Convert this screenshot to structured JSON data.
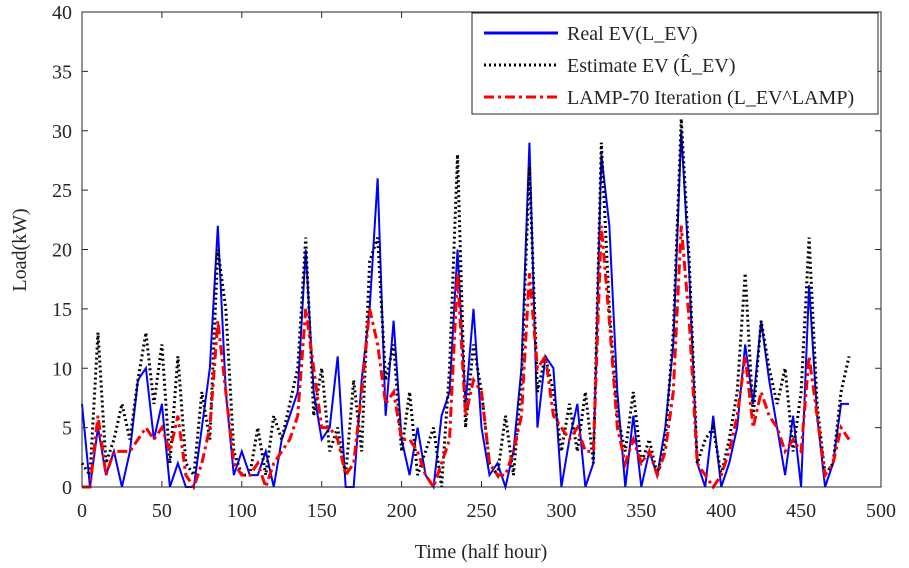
{
  "chart_data": {
    "type": "line",
    "xlabel": "Time (half hour)",
    "ylabel": "Load(kW)",
    "xlim": [
      0,
      500
    ],
    "xticks": [
      0,
      50,
      100,
      150,
      200,
      250,
      300,
      350,
      400,
      450,
      500
    ],
    "ylim": [
      0,
      40
    ],
    "yticks": [
      0,
      5,
      10,
      15,
      20,
      25,
      30,
      35,
      40
    ],
    "grid": false,
    "legend": "upper right",
    "x": [
      0,
      5,
      10,
      15,
      20,
      25,
      30,
      35,
      40,
      45,
      50,
      55,
      60,
      65,
      70,
      75,
      80,
      85,
      90,
      95,
      100,
      105,
      110,
      115,
      120,
      125,
      130,
      135,
      140,
      145,
      150,
      155,
      160,
      165,
      170,
      175,
      180,
      185,
      190,
      195,
      200,
      205,
      210,
      215,
      220,
      225,
      230,
      235,
      240,
      245,
      250,
      255,
      260,
      265,
      270,
      275,
      280,
      285,
      290,
      295,
      300,
      305,
      310,
      315,
      320,
      325,
      330,
      335,
      340,
      345,
      350,
      355,
      360,
      365,
      370,
      375,
      380,
      385,
      390,
      395,
      400,
      405,
      410,
      415,
      420,
      425,
      430,
      435,
      440,
      445,
      450,
      455,
      460,
      465,
      470,
      475,
      480
    ],
    "series": [
      {
        "name": "Real EV(L_EV)",
        "color": "#0000ff",
        "dash": "solid",
        "values": [
          7,
          0,
          5,
          1,
          3,
          0,
          3,
          9,
          10,
          4,
          7,
          0,
          2,
          0,
          0,
          5,
          10,
          22,
          8,
          1,
          3,
          1,
          1,
          3,
          0,
          4,
          6,
          8,
          20,
          8,
          4,
          5,
          11,
          0,
          0,
          9,
          15,
          26,
          6,
          14,
          4,
          1,
          5,
          1,
          0,
          6,
          8,
          20,
          7,
          15,
          5,
          1,
          2,
          0,
          3,
          10,
          29,
          5,
          11,
          10,
          0,
          4,
          7,
          0,
          2,
          28,
          22,
          8,
          0,
          6,
          0,
          3,
          1,
          5,
          12,
          30,
          18,
          2,
          0,
          6,
          0,
          2,
          5,
          12,
          7,
          14,
          9,
          5,
          1,
          6,
          0,
          17,
          6,
          0,
          2,
          7,
          7
        ]
      },
      {
        "name": "Estimate EV (L̂_EV)",
        "color": "#000000",
        "dash": "dotted",
        "values": [
          2,
          1,
          13,
          2,
          4,
          7,
          4,
          9,
          13,
          7,
          12,
          2,
          11,
          2,
          1,
          8,
          4,
          20,
          15,
          3,
          1,
          1,
          5,
          1,
          6,
          4,
          7,
          10,
          21,
          6,
          10,
          3,
          5,
          1,
          9,
          3,
          19,
          21,
          9,
          12,
          3,
          8,
          1,
          3,
          5,
          0,
          10,
          28,
          5,
          12,
          8,
          2,
          1,
          6,
          1,
          9,
          27,
          8,
          11,
          8,
          3,
          7,
          3,
          8,
          2,
          29,
          15,
          6,
          3,
          8,
          2,
          4,
          1,
          4,
          13,
          31,
          19,
          2,
          4,
          5,
          1,
          4,
          8,
          18,
          6,
          14,
          10,
          7,
          10,
          3,
          8,
          21,
          7,
          1,
          2,
          8,
          11
        ]
      },
      {
        "name": "LAMP-70 Iteration (L_EV^LAMP)",
        "color": "#ff0000",
        "dash": "dashdot",
        "values": [
          0,
          0,
          6,
          1,
          3,
          3,
          3,
          4,
          5,
          4,
          5,
          3,
          6,
          1,
          0,
          2,
          5,
          14,
          8,
          2,
          1,
          1,
          2,
          0,
          2,
          3,
          4,
          6,
          15,
          10,
          5,
          5,
          4,
          1,
          2,
          8,
          15,
          12,
          7,
          8,
          4,
          4,
          3,
          1,
          0,
          2,
          4,
          18,
          6,
          9,
          8,
          2,
          1,
          1,
          3,
          6,
          18,
          10,
          11,
          6,
          5,
          4,
          5,
          3,
          3,
          22,
          14,
          5,
          2,
          4,
          2,
          3,
          1,
          3,
          8,
          22,
          14,
          2,
          1,
          0,
          1,
          3,
          6,
          11,
          5,
          8,
          6,
          5,
          3,
          4,
          3,
          11,
          6,
          1,
          2,
          5,
          4
        ]
      }
    ]
  }
}
